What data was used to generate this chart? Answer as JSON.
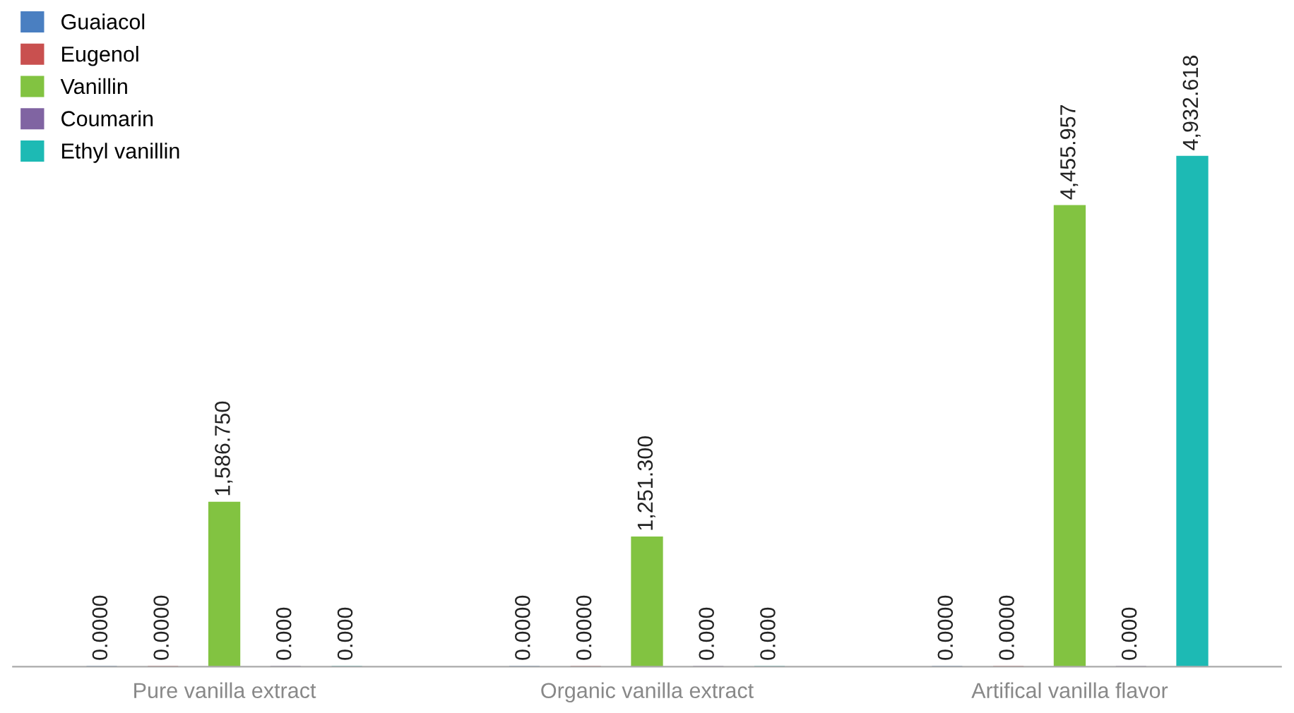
{
  "chart_data": {
    "type": "bar",
    "categories": [
      "Pure vanilla extract",
      "Organic vanilla extract",
      "Artifical vanilla flavor"
    ],
    "series": [
      {
        "name": "Guaiacol",
        "color": "#4a7fc1",
        "values": [
          0,
          0,
          0
        ],
        "value_labels": [
          "0.0000",
          "0.0000",
          "0.0000"
        ]
      },
      {
        "name": "Eugenol",
        "color": "#c9504f",
        "values": [
          0,
          0,
          0
        ],
        "value_labels": [
          "0.0000",
          "0.0000",
          "0.0000"
        ]
      },
      {
        "name": "Vanillin",
        "color": "#82c341",
        "values": [
          1586.75,
          1251.3,
          4455.957
        ],
        "value_labels": [
          "1,586.750",
          "1,251.300",
          "4,455.957"
        ]
      },
      {
        "name": "Coumarin",
        "color": "#8064a2",
        "values": [
          0,
          0,
          0
        ],
        "value_labels": [
          "0.000",
          "0.000",
          "0.000"
        ]
      },
      {
        "name": "Ethyl vanillin",
        "color": "#1dbab4",
        "values": [
          0,
          0,
          4932.618
        ],
        "value_labels": [
          "0.000",
          "0.000",
          "4,932.618"
        ]
      }
    ],
    "legend": "top left",
    "grid": false
  }
}
